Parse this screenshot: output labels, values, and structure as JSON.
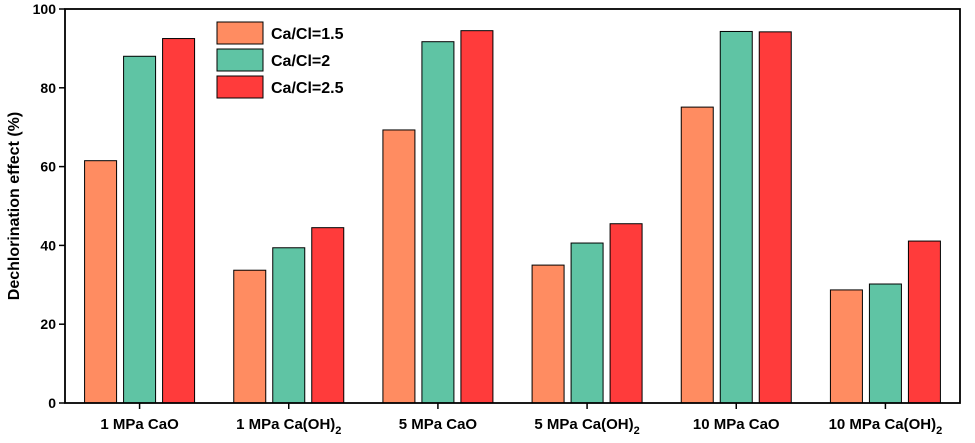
{
  "chart_data": {
    "type": "bar",
    "ylabel": "Dechlorination effect (%)",
    "ylim": [
      0,
      100
    ],
    "yticks": [
      0,
      20,
      40,
      60,
      80,
      100
    ],
    "grid": false,
    "legend_position": "top-left",
    "categories": [
      {
        "base": "1 MPa CaO",
        "sub": ""
      },
      {
        "base": "1 MPa Ca(OH)",
        "sub": "2"
      },
      {
        "base": "5 MPa CaO",
        "sub": ""
      },
      {
        "base": "5 MPa Ca(OH)",
        "sub": "2"
      },
      {
        "base": "10 MPa CaO",
        "sub": ""
      },
      {
        "base": "10 MPa Ca(OH)",
        "sub": "2"
      }
    ],
    "series": [
      {
        "name": "Ca/Cl=1.5",
        "color": "#FF8C61",
        "values": [
          61.5,
          33.7,
          69.3,
          35.0,
          75.1,
          28.7
        ]
      },
      {
        "name": "Ca/Cl=2",
        "color": "#5FC4A4",
        "values": [
          88.0,
          39.4,
          91.7,
          40.6,
          94.3,
          30.2
        ]
      },
      {
        "name": "Ca/Cl=2.5",
        "color": "#FF3B3B",
        "values": [
          92.5,
          44.5,
          94.5,
          45.5,
          94.2,
          41.1
        ]
      }
    ]
  }
}
